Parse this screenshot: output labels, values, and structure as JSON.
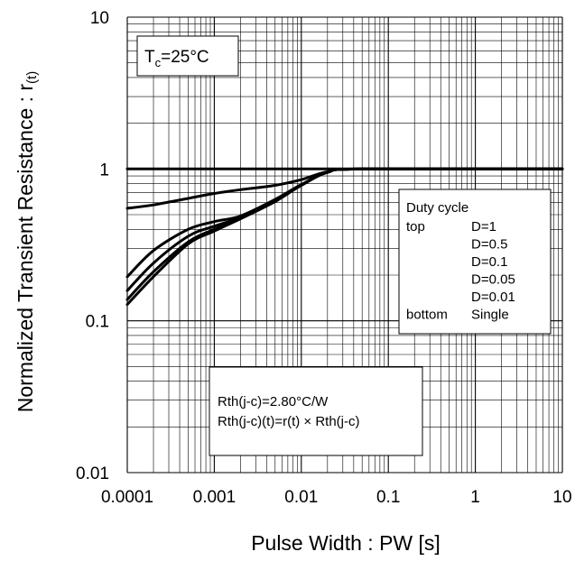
{
  "chart_data": {
    "type": "line",
    "xlabel": "Pulse Width : PW [s]",
    "ylabel": "Normalized Transient Resistance : r",
    "ylabel_subscript": "(t)",
    "x_scale": "log",
    "y_scale": "log",
    "xlim": [
      0.0001,
      10
    ],
    "ylim": [
      0.01,
      10
    ],
    "x_ticks": [
      "0.0001",
      "0.001",
      "0.01",
      "0.1",
      "1",
      "10"
    ],
    "y_ticks": [
      "0.01",
      "0.1",
      "1",
      "10"
    ],
    "grid": true,
    "condition": {
      "prefix": "T",
      "subscript": "c",
      "suffix": "=25°C"
    },
    "legend": {
      "title": "Duty cycle",
      "rows": [
        {
          "pos": "top",
          "label": "D=1"
        },
        {
          "pos": "",
          "label": "D=0.5"
        },
        {
          "pos": "",
          "label": "D=0.1"
        },
        {
          "pos": "",
          "label": "D=0.05"
        },
        {
          "pos": "",
          "label": "D=0.01"
        },
        {
          "pos": "bottom",
          "label": "Single"
        }
      ]
    },
    "annotation": [
      "Rth(j-c)=2.80°C/W",
      "Rth(j-c)(t)=r(t) × Rth(j-c)"
    ],
    "series": [
      {
        "points": [
          [
            0.0001,
            1
          ],
          [
            10,
            1
          ]
        ]
      },
      {
        "points": [
          [
            0.0001,
            0.55
          ],
          [
            0.0002,
            0.58
          ],
          [
            0.0005,
            0.64
          ],
          [
            0.001,
            0.69
          ],
          [
            0.002,
            0.73
          ],
          [
            0.005,
            0.78
          ],
          [
            0.01,
            0.85
          ],
          [
            0.02,
            0.96
          ],
          [
            0.05,
            1.0
          ],
          [
            10,
            1.0
          ]
        ]
      },
      {
        "points": [
          [
            0.0001,
            0.195
          ],
          [
            0.0002,
            0.29
          ],
          [
            0.0005,
            0.4
          ],
          [
            0.001,
            0.45
          ],
          [
            0.002,
            0.49
          ],
          [
            0.005,
            0.63
          ],
          [
            0.01,
            0.79
          ],
          [
            0.02,
            0.95
          ],
          [
            0.05,
            1.0
          ],
          [
            10,
            1.0
          ]
        ]
      },
      {
        "points": [
          [
            0.0001,
            0.158
          ],
          [
            0.0002,
            0.24
          ],
          [
            0.0005,
            0.36
          ],
          [
            0.001,
            0.42
          ],
          [
            0.002,
            0.48
          ],
          [
            0.005,
            0.62
          ],
          [
            0.01,
            0.78
          ],
          [
            0.02,
            0.95
          ],
          [
            0.05,
            1.0
          ],
          [
            10,
            1.0
          ]
        ]
      },
      {
        "points": [
          [
            0.0001,
            0.138
          ],
          [
            0.0002,
            0.21
          ],
          [
            0.0005,
            0.33
          ],
          [
            0.001,
            0.4
          ],
          [
            0.002,
            0.47
          ],
          [
            0.005,
            0.62
          ],
          [
            0.01,
            0.78
          ],
          [
            0.02,
            0.95
          ],
          [
            0.05,
            1.0
          ],
          [
            10,
            1.0
          ]
        ]
      },
      {
        "points": [
          [
            0.0001,
            0.128
          ],
          [
            0.0002,
            0.195
          ],
          [
            0.0005,
            0.32
          ],
          [
            0.001,
            0.39
          ],
          [
            0.002,
            0.47
          ],
          [
            0.005,
            0.61
          ],
          [
            0.01,
            0.78
          ],
          [
            0.02,
            0.95
          ],
          [
            0.05,
            1.0
          ],
          [
            10,
            1.0
          ]
        ]
      }
    ]
  }
}
